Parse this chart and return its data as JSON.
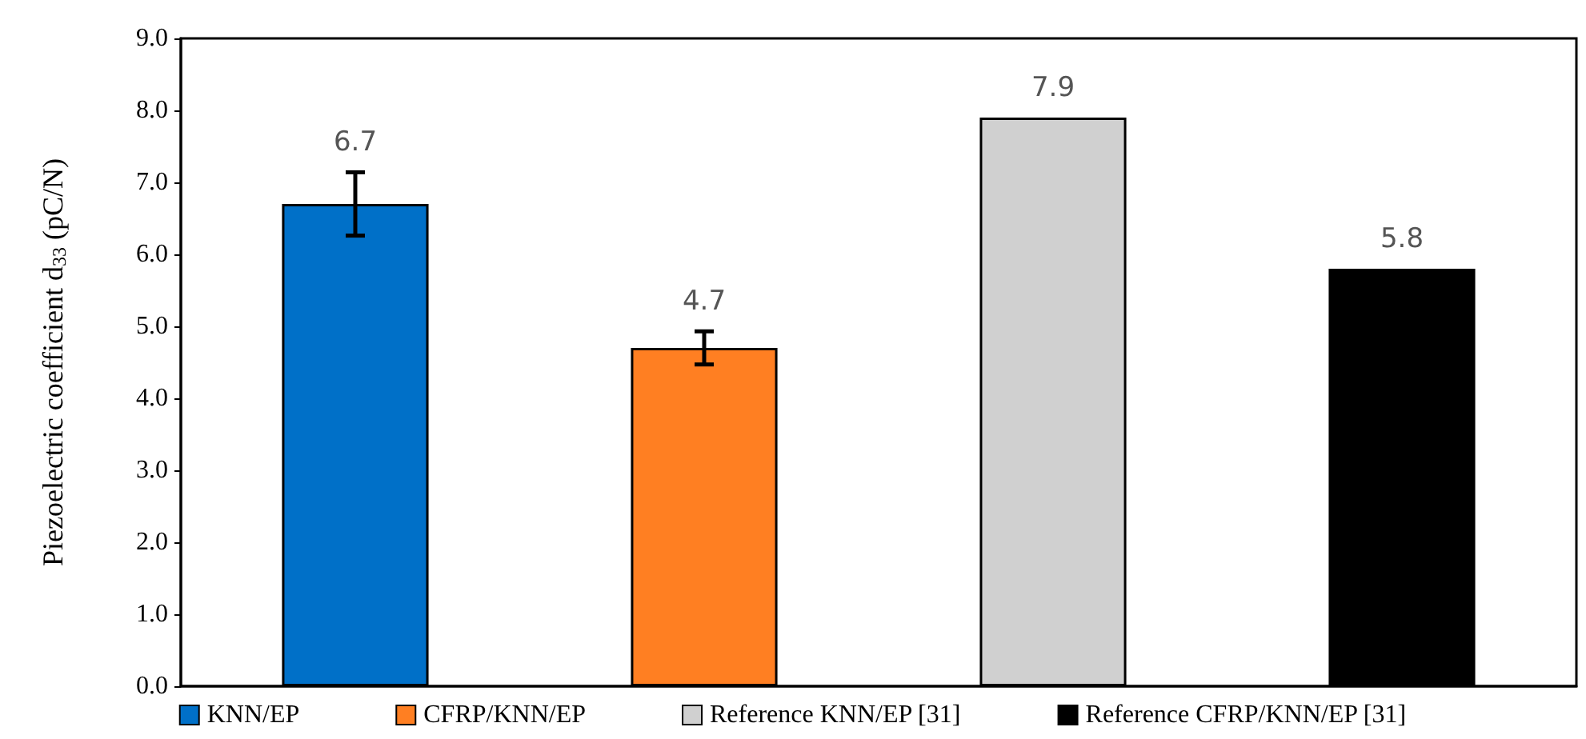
{
  "chart_data": {
    "type": "bar",
    "ylabel": "Piezoelectric coefficient d$_{33}$ (pC/N)",
    "categories": [
      null,
      null,
      null,
      null
    ],
    "series": [
      {
        "name": "KNN/EP",
        "color": "#0070c8",
        "values": [
          6.7,
          null,
          null,
          null
        ],
        "errors": [
          0.44,
          null,
          null,
          null
        ]
      },
      {
        "name": "CFRP/KNN/EP",
        "color": "#ff7f22",
        "values": [
          null,
          4.7,
          null,
          null
        ],
        "errors": [
          null,
          0.23,
          null,
          null
        ]
      },
      {
        "name": "Reference KNN/EP [31]",
        "color": "#d0d0d0",
        "values": [
          null,
          null,
          7.9,
          null
        ]
      },
      {
        "name": "Reference CFRP/KNN/EP [31]",
        "color": "#000000",
        "values": [
          null,
          null,
          null,
          5.8
        ]
      }
    ],
    "ylim": [
      0,
      9
    ],
    "yticks": [
      {
        "value": 0,
        "label": "0.0"
      },
      {
        "value": 1,
        "label": "1.0"
      },
      {
        "value": 2,
        "label": "2.0"
      },
      {
        "value": 3,
        "label": "3.0"
      },
      {
        "value": 4,
        "label": "4.0"
      },
      {
        "value": 5,
        "label": "5.0"
      },
      {
        "value": 6,
        "label": "6.0"
      },
      {
        "value": 7,
        "label": "7.0"
      },
      {
        "value": 8,
        "label": "8.0"
      },
      {
        "value": 9,
        "label": "9.0"
      }
    ],
    "data_labels": true,
    "grid": false,
    "legend": "bottom"
  }
}
